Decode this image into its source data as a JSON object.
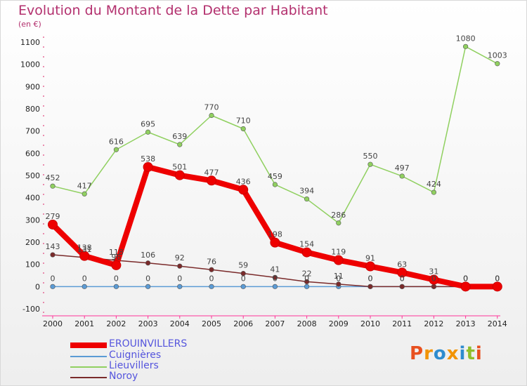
{
  "header": {
    "title": "Evolution du Montant de la Dette par Habitant",
    "subtitle": "(en €)"
  },
  "logo": {
    "text": "Proxiti",
    "colors": [
      "#e8501f",
      "#f29300",
      "#2e8ccf",
      "#f29300",
      "#2e8ccf",
      "#8fbf2b",
      "#e8501f"
    ]
  },
  "chart_data": {
    "type": "line",
    "title": "Evolution du Montant de la Dette par Habitant",
    "ylabel": "(en €)",
    "x": [
      "2000",
      "2001",
      "2002",
      "2003",
      "2004",
      "2005",
      "2006",
      "2007",
      "2008",
      "2009",
      "2010",
      "2011",
      "2012",
      "2013",
      "2014"
    ],
    "ylim": [
      -100,
      1100
    ],
    "yticks": [
      "-100",
      "0",
      "100",
      "200",
      "300",
      "400",
      "500",
      "600",
      "700",
      "800",
      "900",
      "1000",
      "1100"
    ],
    "grid": false,
    "legend": "bottom-left",
    "series": [
      {
        "name": "EROUINVILLERS",
        "color": "#ee0000",
        "style": "thick",
        "values": [
          279,
          138,
          96,
          538,
          501,
          477,
          436,
          198,
          154,
          119,
          91,
          63,
          31,
          0,
          0
        ],
        "labels": [
          "279",
          "138",
          "96",
          "538",
          "501",
          "477",
          "436",
          "198",
          "154",
          "119",
          "91",
          "63",
          "31",
          "0",
          "0"
        ]
      },
      {
        "name": "Cuignières",
        "color": "#5b9bd5",
        "style": "thin",
        "values": [
          0,
          0,
          0,
          0,
          0,
          0,
          0,
          0,
          0,
          0,
          0,
          0,
          0,
          0,
          0
        ],
        "labels": [
          "0",
          "0",
          "0",
          "0",
          "0",
          "0",
          "0",
          "0",
          "0",
          "0",
          "0",
          "0",
          "0",
          "0",
          "0"
        ]
      },
      {
        "name": "Lieuvillers",
        "color": "#90d060",
        "style": "thin",
        "values": [
          452,
          417,
          616,
          695,
          639,
          770,
          710,
          459,
          394,
          286,
          550,
          497,
          424,
          1080,
          1003
        ],
        "labels": [
          "452",
          "417",
          "616",
          "695",
          "639",
          "770",
          "710",
          "459",
          "394",
          "286",
          "550",
          "497",
          "424",
          "1080",
          "1003"
        ]
      },
      {
        "name": "Noroy",
        "color": "#7a2a2a",
        "style": "thin",
        "values": [
          143,
          131,
          118,
          106,
          92,
          76,
          59,
          41,
          22,
          11,
          0,
          0,
          0,
          0,
          0
        ],
        "labels": [
          "143",
          "131",
          "118",
          "106",
          "92",
          "76",
          "59",
          "41",
          "22",
          "11",
          "0",
          "0",
          "0",
          "0",
          "0"
        ]
      }
    ]
  }
}
